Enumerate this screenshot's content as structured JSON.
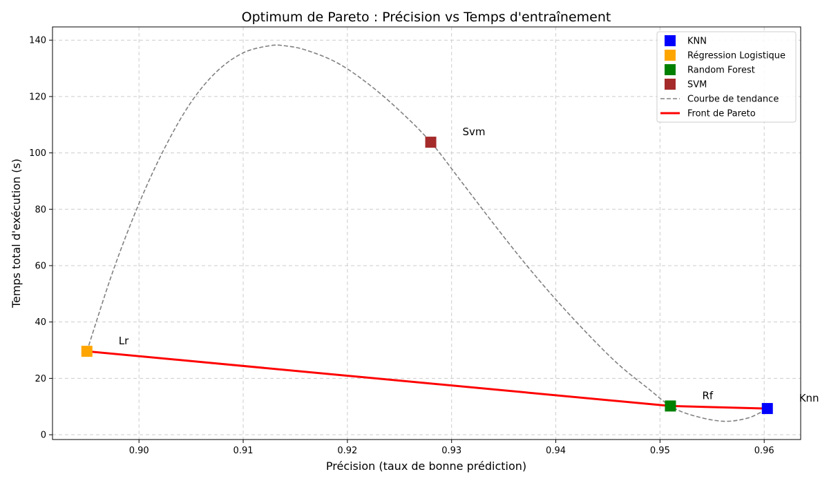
{
  "chart_data": {
    "type": "scatter",
    "title": "Optimum de Pareto : Précision vs Temps d'entraînement",
    "xlabel": "Précision (taux de bonne prédiction)",
    "ylabel": "Temps total d'exécution (s)",
    "xlim": [
      0.8917,
      0.9635
    ],
    "ylim": [
      -1.7,
      144.7
    ],
    "xticks": [
      "0.90",
      "0.91",
      "0.92",
      "0.93",
      "0.94",
      "0.95",
      "0.96"
    ],
    "xtick_values": [
      0.9,
      0.91,
      0.92,
      0.93,
      0.94,
      0.95,
      0.96
    ],
    "yticks": [
      "0",
      "20",
      "40",
      "60",
      "80",
      "100",
      "120",
      "140"
    ],
    "ytick_values": [
      0,
      20,
      40,
      60,
      80,
      100,
      120,
      140
    ],
    "grid": true,
    "legend_position": "top-right",
    "points": [
      {
        "name": "KNN",
        "label": "Knn",
        "x": 0.9603,
        "y": 9.3,
        "color": "#0000ff"
      },
      {
        "name": "Régression Logistique",
        "label": "Lr",
        "x": 0.895,
        "y": 29.6,
        "color": "#ffa500"
      },
      {
        "name": "Random Forest",
        "label": "Rf",
        "x": 0.951,
        "y": 10.2,
        "color": "#008000"
      },
      {
        "name": "SVM",
        "label": "Svm",
        "x": 0.928,
        "y": 103.8,
        "color": "#a52a2a"
      }
    ],
    "trend_line": {
      "name": "Courbe de tendance",
      "color": "#808080",
      "x": [
        0.895,
        0.8975,
        0.9,
        0.9025,
        0.905,
        0.9075,
        0.91,
        0.9125,
        0.914,
        0.916,
        0.919,
        0.922,
        0.925,
        0.928,
        0.931,
        0.934,
        0.937,
        0.94,
        0.943,
        0.946,
        0.949,
        0.951,
        0.953,
        0.956,
        0.9585,
        0.9603
      ],
      "y": [
        29.6,
        58.0,
        82.0,
        102.0,
        118.0,
        129.0,
        135.5,
        138.0,
        138.0,
        136.5,
        132.0,
        124.5,
        115.0,
        103.8,
        89.5,
        75.0,
        61.0,
        48.0,
        36.0,
        25.0,
        16.0,
        10.2,
        7.0,
        4.8,
        6.0,
        9.3
      ]
    },
    "pareto_front": {
      "name": "Front de Pareto",
      "color": "#ff0000",
      "x": [
        0.895,
        0.951,
        0.9603
      ],
      "y": [
        29.6,
        10.2,
        9.3
      ]
    },
    "legend": [
      "KNN",
      "Régression Logistique",
      "Random Forest",
      "SVM",
      "Courbe de tendance",
      "Front de Pareto"
    ]
  }
}
